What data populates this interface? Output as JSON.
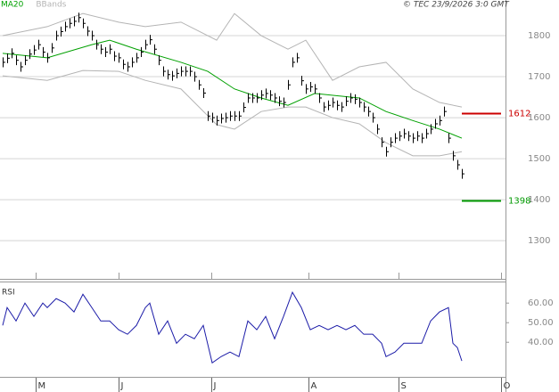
{
  "chart_data": [
    {
      "type": "ohlc",
      "source": "© TEC 23/9/2026 3:0 GMT",
      "color": "#000000",
      "x": [
        0,
        1,
        2,
        3,
        4,
        5,
        6,
        7,
        8,
        9,
        10,
        11,
        12,
        13,
        14,
        15,
        16,
        17,
        18,
        19,
        20,
        21,
        22,
        23,
        24,
        25,
        26,
        27,
        28,
        29,
        30,
        31,
        32,
        33,
        34,
        35,
        36,
        37,
        38,
        39,
        40,
        41,
        42,
        43,
        44,
        45,
        46,
        47,
        48,
        49,
        50,
        51,
        52,
        53,
        54,
        55,
        56,
        57,
        58,
        59,
        60,
        61,
        62,
        63,
        64,
        65,
        66,
        67,
        68,
        69,
        70,
        71,
        72,
        73,
        74,
        75,
        76,
        77,
        78,
        79,
        80,
        81,
        82,
        83,
        84,
        85,
        86,
        87,
        88,
        89,
        90,
        91,
        92,
        93,
        94,
        95,
        96,
        97,
        98,
        99,
        100,
        101,
        102,
        103
      ],
      "high": [
        1747,
        1757,
        1769,
        1752,
        1736,
        1752,
        1767,
        1777,
        1790,
        1772,
        1758,
        1782,
        1812,
        1822,
        1834,
        1842,
        1847,
        1856,
        1842,
        1823,
        1812,
        1790,
        1779,
        1772,
        1779,
        1762,
        1758,
        1742,
        1736,
        1747,
        1758,
        1772,
        1790,
        1802,
        1779,
        1752,
        1725,
        1717,
        1714,
        1720,
        1725,
        1725,
        1725,
        1712,
        1692,
        1672,
        1616,
        1612,
        1605,
        1610,
        1612,
        1616,
        1616,
        1616,
        1637,
        1660,
        1660,
        1660,
        1667,
        1671,
        1667,
        1660,
        1652,
        1649,
        1692,
        1747,
        1758,
        1702,
        1682,
        1687,
        1682,
        1660,
        1638,
        1642,
        1649,
        1642,
        1638,
        1652,
        1660,
        1657,
        1649,
        1638,
        1627,
        1612,
        1584,
        1552,
        1529,
        1552,
        1562,
        1567,
        1573,
        1567,
        1562,
        1567,
        1562,
        1573,
        1584,
        1597,
        1605,
        1627,
        1562,
        1519,
        1497,
        1475
      ],
      "low": [
        1723,
        1733,
        1745,
        1728,
        1712,
        1728,
        1743,
        1753,
        1766,
        1748,
        1734,
        1758,
        1788,
        1798,
        1810,
        1818,
        1823,
        1832,
        1818,
        1799,
        1788,
        1766,
        1755,
        1748,
        1755,
        1738,
        1734,
        1718,
        1712,
        1723,
        1734,
        1748,
        1766,
        1778,
        1755,
        1728,
        1701,
        1693,
        1690,
        1696,
        1701,
        1701,
        1701,
        1688,
        1668,
        1648,
        1592,
        1588,
        1581,
        1586,
        1588,
        1592,
        1592,
        1592,
        1613,
        1636,
        1636,
        1636,
        1643,
        1647,
        1643,
        1636,
        1628,
        1625,
        1668,
        1723,
        1734,
        1678,
        1658,
        1663,
        1658,
        1636,
        1614,
        1618,
        1625,
        1618,
        1614,
        1628,
        1636,
        1633,
        1625,
        1614,
        1603,
        1588,
        1560,
        1528,
        1505,
        1528,
        1538,
        1543,
        1549,
        1543,
        1538,
        1543,
        1538,
        1549,
        1560,
        1573,
        1581,
        1603,
        1538,
        1495,
        1473,
        1451
      ],
      "close": [
        1735,
        1745,
        1757,
        1740,
        1724,
        1740,
        1755,
        1765,
        1778,
        1760,
        1746,
        1770,
        1800,
        1810,
        1822,
        1830,
        1835,
        1844,
        1830,
        1811,
        1800,
        1778,
        1767,
        1760,
        1767,
        1750,
        1746,
        1730,
        1724,
        1735,
        1746,
        1760,
        1778,
        1790,
        1767,
        1740,
        1713,
        1705,
        1702,
        1708,
        1713,
        1713,
        1713,
        1700,
        1680,
        1660,
        1604,
        1600,
        1593,
        1598,
        1600,
        1604,
        1604,
        1604,
        1625,
        1648,
        1648,
        1648,
        1655,
        1659,
        1655,
        1648,
        1640,
        1637,
        1680,
        1735,
        1746,
        1690,
        1670,
        1675,
        1670,
        1648,
        1626,
        1630,
        1637,
        1630,
        1626,
        1640,
        1648,
        1645,
        1637,
        1626,
        1615,
        1600,
        1572,
        1540,
        1517,
        1540,
        1550,
        1555,
        1561,
        1555,
        1550,
        1555,
        1550,
        1561,
        1572,
        1585,
        1593,
        1615,
        1550,
        1507,
        1485,
        1463
      ],
      "series": [
        {
          "name": "MA20",
          "color": "#00a000",
          "x": [
            0,
            10,
            20,
            24,
            30,
            40,
            46,
            52,
            58,
            64,
            70,
            80,
            86,
            92,
            98,
            103
          ],
          "values": [
            1757,
            1746,
            1778,
            1789,
            1767,
            1735,
            1713,
            1670,
            1648,
            1630,
            1659,
            1648,
            1615,
            1593,
            1572,
            1550
          ]
        },
        {
          "name": "BBands",
          "color": "#b4b4b4",
          "x": [
            0,
            10,
            18,
            26,
            32,
            40,
            48,
            52,
            58,
            64,
            68,
            74,
            80,
            86,
            92,
            98,
            103
          ],
          "upper": [
            1800,
            1822,
            1854,
            1833,
            1822,
            1833,
            1789,
            1854,
            1800,
            1767,
            1789,
            1691,
            1724,
            1735,
            1670,
            1637,
            1626
          ],
          "lower": [
            1702,
            1691,
            1715,
            1713,
            1691,
            1670,
            1583,
            1572,
            1615,
            1626,
            1626,
            1600,
            1585,
            1539,
            1507,
            1507,
            1517
          ]
        }
      ],
      "levels": [
        {
          "value": 1612,
          "color": "#cc0000"
        },
        {
          "value": 1398,
          "color": "#009900"
        }
      ],
      "xlim": [
        -0.6,
        112.8
      ],
      "ylim": [
        1209,
        1887
      ],
      "yticks": [
        1300,
        1400,
        1500,
        1600,
        1700,
        1800
      ],
      "grid": true
    },
    {
      "type": "line",
      "title": "RSI",
      "color": "#1c1ca8",
      "x": [
        0,
        1,
        3,
        5,
        7,
        9,
        10,
        12,
        14,
        16,
        18,
        20,
        22,
        24,
        26,
        28,
        30,
        32,
        33,
        35,
        37,
        39,
        41,
        43,
        45,
        47,
        49,
        51,
        53,
        55,
        57,
        59,
        61,
        63,
        65,
        67,
        69,
        71,
        73,
        75,
        77,
        79,
        81,
        83,
        85,
        86,
        88,
        90,
        92,
        94,
        96,
        98,
        100,
        101,
        102,
        103
      ],
      "values": [
        48.6,
        57.7,
        50.9,
        60,
        53.2,
        60,
        57.7,
        62.3,
        60,
        55.5,
        64.5,
        57.7,
        50.9,
        50.9,
        46.4,
        44.1,
        48.6,
        57.7,
        60,
        44.1,
        50.9,
        39.5,
        44.1,
        41.8,
        48.6,
        29.5,
        32.7,
        35,
        32.7,
        50.9,
        46.4,
        53.2,
        41.8,
        53.2,
        65.5,
        57.7,
        46.4,
        48.6,
        46.4,
        48.6,
        46.4,
        48.6,
        44.1,
        44.1,
        39.5,
        32.7,
        35,
        39.5,
        39.5,
        39.5,
        50.9,
        55.5,
        57.7,
        39.5,
        37.3,
        30.5
      ],
      "xlim": [
        -0.6,
        112.8
      ],
      "ylim": [
        26,
        71
      ],
      "yticks": [
        {
          "value": 40,
          "label": "40.00"
        },
        {
          "value": 50,
          "label": "50.00"
        },
        {
          "value": 60,
          "label": "60.00"
        }
      ],
      "xticks": [
        {
          "value": 7.4,
          "label": "M"
        },
        {
          "value": 26,
          "label": "J"
        },
        {
          "value": 46.8,
          "label": "J"
        },
        {
          "value": 68.6,
          "label": "A"
        },
        {
          "value": 88.8,
          "label": "S"
        },
        {
          "value": 111.8,
          "label": "O"
        }
      ],
      "grid": false
    }
  ]
}
